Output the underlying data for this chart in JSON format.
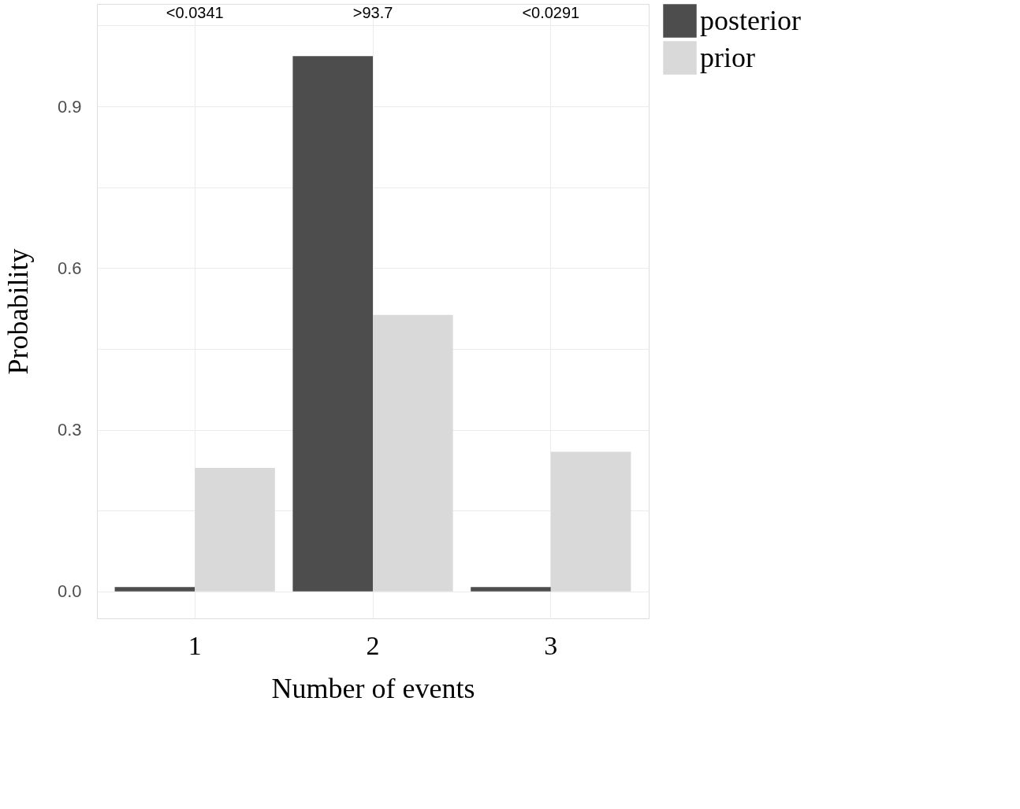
{
  "chart_data": {
    "type": "bar",
    "xlabel": "Number of events",
    "ylabel": "Probability",
    "categories": [
      "1",
      "2",
      "3"
    ],
    "series": [
      {
        "name": "posterior",
        "color": "#4d4d4d",
        "values": [
          0.008,
          0.993,
          0.008
        ]
      },
      {
        "name": "prior",
        "color": "#d9d9d9",
        "values": [
          0.229,
          0.513,
          0.259
        ]
      }
    ],
    "ylim": [
      -0.05,
      1.09
    ],
    "yticks": [
      {
        "value": 0,
        "label": "0.0"
      },
      {
        "value": 0.15,
        "label": null
      },
      {
        "value": 0.3,
        "label": "0.3"
      },
      {
        "value": 0.45,
        "label": null
      },
      {
        "value": 0.6,
        "label": "0.6"
      },
      {
        "value": 0.75,
        "label": null
      },
      {
        "value": 0.9,
        "label": "0.9"
      },
      {
        "value": 1.05,
        "label": null
      }
    ],
    "annotations": [
      "<0.0341",
      ">93.7",
      "<0.0291"
    ],
    "grid": true,
    "legend": "right"
  }
}
